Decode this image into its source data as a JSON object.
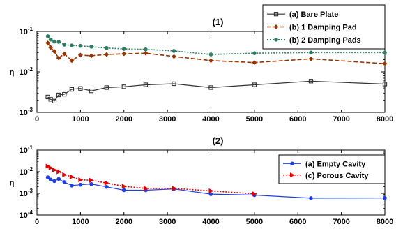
{
  "chart_data": [
    {
      "type": "line",
      "title": "(1)",
      "xlabel": "",
      "ylabel": "η",
      "xlim": [
        0,
        8000
      ],
      "ylim": [
        0.001,
        0.1
      ],
      "yscale": "log",
      "grid": false,
      "legend_position": "top-right",
      "x_ticks": [
        "0",
        "1000",
        "2000",
        "3000",
        "4000",
        "5000",
        "6000",
        "7000",
        "8000"
      ],
      "y_ticks": [
        {
          "base": "10",
          "exp": "-3",
          "value": 0.001
        },
        {
          "base": "10",
          "exp": "-2",
          "value": 0.01
        },
        {
          "base": "10",
          "exp": "-1",
          "value": 0.1
        }
      ],
      "series": [
        {
          "name": "(a) Bare Plate",
          "color": "#333333",
          "line": "solid",
          "marker": "square",
          "x": [
            250,
            315,
            400,
            500,
            630,
            800,
            1000,
            1250,
            1600,
            2000,
            2500,
            3150,
            4000,
            5000,
            6300,
            8000
          ],
          "y": [
            0.0024,
            0.0021,
            0.0019,
            0.0027,
            0.0028,
            0.0037,
            0.0039,
            0.0034,
            0.0041,
            0.0043,
            0.0048,
            0.0051,
            0.0041,
            0.0048,
            0.0059,
            0.005
          ]
        },
        {
          "name": "(b) 1 Damping Pad",
          "color": "#993300",
          "line": "dashed",
          "marker": "diamond",
          "x": [
            250,
            315,
            400,
            500,
            630,
            800,
            1000,
            1250,
            1600,
            2000,
            2500,
            3150,
            4000,
            5000,
            6300,
            8000
          ],
          "y": [
            0.052,
            0.04,
            0.032,
            0.022,
            0.028,
            0.019,
            0.026,
            0.025,
            0.027,
            0.028,
            0.029,
            0.024,
            0.019,
            0.017,
            0.021,
            0.016
          ]
        },
        {
          "name": "(b) 2 Damping Pads",
          "color": "#2e7d62",
          "line": "dotted",
          "marker": "circle",
          "x": [
            250,
            315,
            400,
            500,
            630,
            800,
            1000,
            1250,
            1600,
            2000,
            2500,
            3150,
            4000,
            5000,
            6300,
            8000
          ],
          "y": [
            0.076,
            0.063,
            0.056,
            0.055,
            0.047,
            0.045,
            0.044,
            0.042,
            0.039,
            0.037,
            0.036,
            0.033,
            0.027,
            0.029,
            0.03,
            0.03
          ]
        }
      ]
    },
    {
      "type": "line",
      "title": "(2)",
      "xlabel": "",
      "ylabel": "η",
      "xlim": [
        0,
        8000
      ],
      "ylim": [
        0.0001,
        0.1
      ],
      "yscale": "log",
      "grid": false,
      "legend_position": "top-right",
      "x_ticks": [
        "0",
        "1000",
        "2000",
        "3000",
        "4000",
        "5000",
        "6000",
        "7000",
        "8000"
      ],
      "y_ticks": [
        {
          "base": "10",
          "exp": "-4",
          "value": 0.0001
        },
        {
          "base": "10",
          "exp": "-3",
          "value": 0.001
        },
        {
          "base": "10",
          "exp": "-2",
          "value": 0.01
        },
        {
          "base": "10",
          "exp": "-1",
          "value": 0.1
        }
      ],
      "series": [
        {
          "name": "(a) Empty Cavity",
          "color": "#1f3fe0",
          "line": "solid",
          "marker": "circle",
          "x": [
            250,
            315,
            400,
            500,
            630,
            800,
            1000,
            1250,
            1600,
            2000,
            2500,
            3150,
            4000,
            5000,
            6300,
            8000
          ],
          "y": [
            0.0055,
            0.0043,
            0.0037,
            0.0046,
            0.0033,
            0.0023,
            0.0025,
            0.0027,
            0.002,
            0.0014,
            0.0014,
            0.0016,
            0.00092,
            0.00083,
            0.0006,
            0.00061
          ]
        },
        {
          "name": "(c) Porous Cavity",
          "color": "#e00000",
          "line": "dotted",
          "marker": "triangle-right",
          "x": [
            250,
            315,
            400,
            500,
            630,
            800,
            1000,
            1250,
            1600,
            2000,
            2500,
            3150,
            4000,
            5000
          ],
          "y": [
            0.018,
            0.015,
            0.012,
            0.01,
            0.0072,
            0.0058,
            0.0042,
            0.004,
            0.003,
            0.0021,
            0.0017,
            0.0017,
            0.0013,
            0.00095
          ]
        }
      ]
    }
  ]
}
